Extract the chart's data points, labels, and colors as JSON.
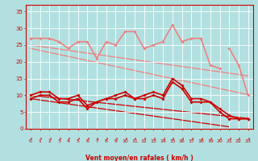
{
  "x": [
    0,
    1,
    2,
    3,
    4,
    5,
    6,
    7,
    8,
    9,
    10,
    11,
    12,
    13,
    14,
    15,
    16,
    17,
    18,
    19,
    20,
    21,
    22,
    23
  ],
  "line_gusts_1": [
    27,
    27,
    27,
    26,
    24,
    26,
    26,
    21,
    26,
    25,
    29,
    29,
    24,
    25,
    26,
    31,
    26,
    27,
    27,
    19,
    18,
    null,
    null,
    null
  ],
  "line_gusts_extra": [
    null,
    null,
    null,
    null,
    null,
    null,
    null,
    null,
    null,
    null,
    null,
    null,
    null,
    null,
    null,
    null,
    null,
    null,
    null,
    null,
    null,
    24,
    19,
    10
  ],
  "line_gusts_trend1": [
    25,
    24.6,
    24.2,
    23.8,
    23.4,
    23.0,
    22.6,
    22.2,
    21.8,
    21.4,
    21.0,
    20.6,
    20.2,
    19.8,
    19.4,
    19.0,
    18.6,
    18.2,
    17.8,
    17.4,
    17.0,
    16.6,
    16.2,
    15.8
  ],
  "line_gusts_trend2": [
    24,
    23.4,
    22.8,
    22.2,
    21.6,
    21.0,
    20.4,
    19.8,
    19.2,
    18.6,
    18.0,
    17.4,
    16.8,
    16.2,
    15.6,
    15.0,
    14.4,
    13.8,
    13.2,
    12.6,
    12.0,
    11.4,
    10.8,
    10.2
  ],
  "line_avg_1": [
    10,
    11,
    11,
    9,
    9,
    10,
    7,
    8,
    9,
    10,
    11,
    9,
    10,
    11,
    10,
    15,
    13,
    9,
    9,
    8,
    6,
    4,
    3,
    3
  ],
  "line_avg_2": [
    9,
    10,
    10,
    8,
    8,
    9,
    6,
    8,
    9,
    9,
    10,
    9,
    9,
    10,
    9,
    14,
    12,
    8,
    8,
    8,
    5,
    3,
    3,
    3
  ],
  "line_avg_trend1": [
    10,
    9.7,
    9.4,
    9.1,
    8.8,
    8.5,
    8.2,
    7.9,
    7.6,
    7.3,
    7.0,
    6.7,
    6.4,
    6.1,
    5.8,
    5.5,
    5.2,
    4.9,
    4.6,
    4.3,
    4.0,
    3.7,
    3.4,
    3.1
  ],
  "line_avg_trend2": [
    9,
    8.6,
    8.2,
    7.8,
    7.4,
    7.0,
    6.6,
    6.2,
    5.8,
    5.4,
    5.0,
    4.6,
    4.2,
    3.8,
    3.4,
    3.0,
    2.6,
    2.2,
    1.8,
    1.4,
    1.0,
    0.6,
    null,
    null
  ],
  "color_pink": "#f08080",
  "color_dark_red": "#cc0000",
  "color_bg": "#b2e0e0",
  "color_grid": "#d0d0d0",
  "color_axis_text": "#cc0000",
  "xlabel": "Vent moyen/en rafales ( km/h )",
  "ylim": [
    0,
    37
  ],
  "xlim": [
    -0.5,
    23.5
  ],
  "yticks": [
    0,
    5,
    10,
    15,
    20,
    25,
    30,
    35
  ]
}
